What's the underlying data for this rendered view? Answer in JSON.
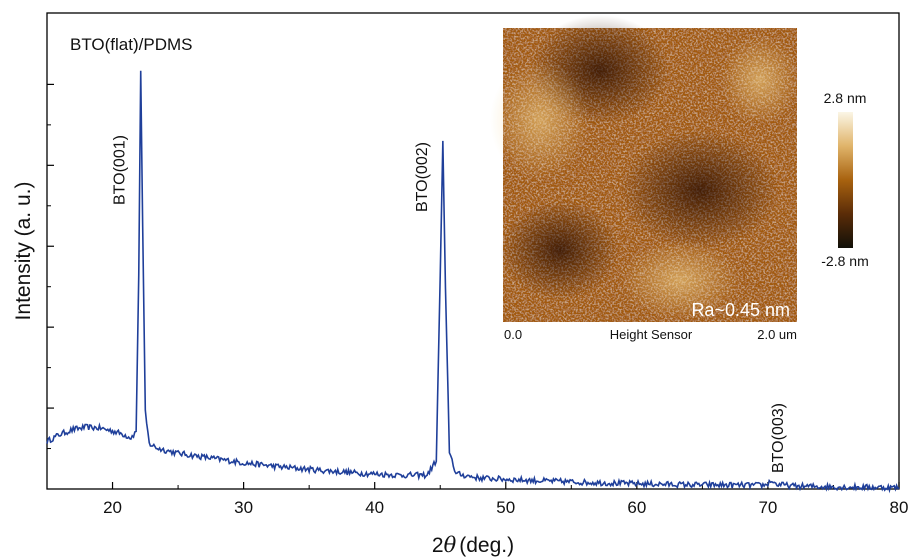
{
  "chart_data": {
    "type": "line",
    "xlabel_prefix": "2",
    "xlabel_symbol": "θ",
    "xlabel_suffix": "(deg.)",
    "ylabel": "Intensity (a. u.)",
    "xlim": [
      15,
      80
    ],
    "ylim": [
      0,
      1.0
    ],
    "x_ticks": [
      20,
      30,
      40,
      50,
      60,
      70,
      80
    ],
    "y_tick_labels_shown": false,
    "grid": false,
    "sample_label": "BTO(flat)/PDMS",
    "series": [
      {
        "color": "#1f3f9a",
        "points": [
          [
            15.0,
            0.1
          ],
          [
            16.0,
            0.115
          ],
          [
            17.0,
            0.125
          ],
          [
            18.0,
            0.13
          ],
          [
            19.0,
            0.128
          ],
          [
            20.0,
            0.122
          ],
          [
            20.8,
            0.115
          ],
          [
            21.4,
            0.108
          ],
          [
            21.8,
            0.12
          ],
          [
            22.0,
            0.45
          ],
          [
            22.15,
            0.88
          ],
          [
            22.3,
            0.55
          ],
          [
            22.5,
            0.16
          ],
          [
            22.8,
            0.095
          ],
          [
            23.5,
            0.085
          ],
          [
            25.0,
            0.075
          ],
          [
            27.0,
            0.067
          ],
          [
            30.0,
            0.055
          ],
          [
            33.0,
            0.046
          ],
          [
            36.0,
            0.039
          ],
          [
            39.0,
            0.033
          ],
          [
            42.0,
            0.029
          ],
          [
            44.0,
            0.029
          ],
          [
            44.7,
            0.06
          ],
          [
            45.0,
            0.45
          ],
          [
            45.2,
            0.73
          ],
          [
            45.4,
            0.42
          ],
          [
            45.7,
            0.08
          ],
          [
            46.2,
            0.032
          ],
          [
            48.0,
            0.023
          ],
          [
            52.0,
            0.018
          ],
          [
            56.0,
            0.014
          ],
          [
            60.0,
            0.011
          ],
          [
            64.0,
            0.009
          ],
          [
            68.0,
            0.008
          ],
          [
            69.8,
            0.008
          ],
          [
            70.3,
            0.018
          ],
          [
            70.6,
            0.01
          ],
          [
            72.0,
            0.006
          ],
          [
            76.0,
            0.004
          ],
          [
            80.0,
            0.003
          ]
        ]
      }
    ],
    "peak_labels": [
      {
        "text": "BTO(001)",
        "x": 22.15
      },
      {
        "text": "BTO(002)",
        "x": 45.2
      },
      {
        "text": "BTO(003)",
        "x": 70.4
      }
    ],
    "inset": {
      "x_left_label": "0.0",
      "x_center_label": "Height Sensor",
      "x_right_label": "2.0 um",
      "roughness_label": "Ra~0.45 nm",
      "colorbar_max_label": "2.8 nm",
      "colorbar_min_label": "-2.8 nm",
      "colorbar_colors": [
        "#111008",
        "#5a2c08",
        "#a8620f",
        "#e0b46a",
        "#fbf6e6"
      ]
    }
  }
}
